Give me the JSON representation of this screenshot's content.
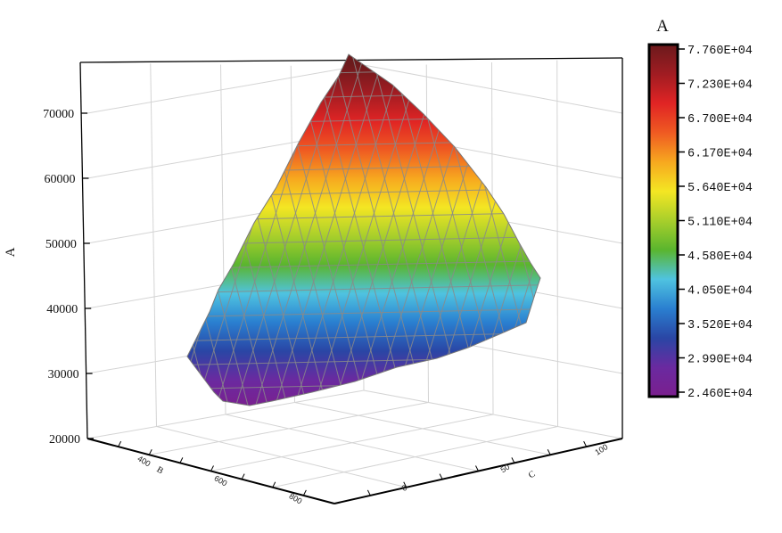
{
  "chart_data": {
    "type": "surface3d",
    "title": "",
    "zlabel": "A",
    "xlabel": "B",
    "ylabel": "C",
    "zlim": [
      20000,
      77600
    ],
    "z_ticks": [
      "20000",
      "30000",
      "40000",
      "50000",
      "60000",
      "70000"
    ],
    "z_tick_values": [
      20000,
      30000,
      40000,
      50000,
      60000,
      70000
    ],
    "x_ticks": [
      "400",
      "600",
      "800"
    ],
    "y_ticks": [
      "0",
      "50",
      "100"
    ],
    "grid": true,
    "colorbar": {
      "title": "A",
      "min": 24600,
      "max": 77600,
      "labels": [
        "7.760E+04",
        "7.230E+04",
        "6.700E+04",
        "6.170E+04",
        "5.640E+04",
        "5.110E+04",
        "4.580E+04",
        "4.050E+04",
        "3.520E+04",
        "2.990E+04",
        "2.460E+04"
      ],
      "colors": [
        "#6b1a1c",
        "#a01c22",
        "#e02424",
        "#ef5a22",
        "#f7a81f",
        "#f4e623",
        "#a8cf2b",
        "#5ab52e",
        "#4fc3e0",
        "#2a7fd0",
        "#2a46a5",
        "#6a2aa0",
        "#7b1f8e"
      ]
    },
    "surface_rows": [
      {
        "z": 76000,
        "left": [
          384,
          80
        ],
        "right": [
          395,
          80
        ]
      },
      {
        "z": 70000,
        "left": [
          350,
          128
        ],
        "right": [
          470,
          128
        ]
      },
      {
        "z": 60000,
        "left": [
          313,
          210
        ],
        "right": [
          545,
          210
        ]
      },
      {
        "z": 50000,
        "left": [
          275,
          280
        ],
        "right": [
          590,
          280
        ]
      },
      {
        "z": 42000,
        "left": [
          240,
          330
        ],
        "right": [
          605,
          315
        ]
      },
      {
        "z": 35000,
        "left": [
          215,
          395
        ],
        "right": [
          560,
          375
        ]
      },
      {
        "z": 25000,
        "left": [
          245,
          450
        ],
        "right": [
          420,
          430
        ]
      }
    ]
  }
}
